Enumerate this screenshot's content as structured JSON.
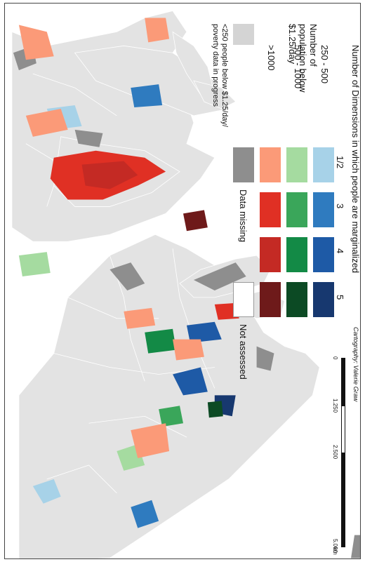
{
  "legend": {
    "title": "Number of Dimensions in which people are marginalized",
    "columns": [
      "1/2",
      "3",
      "4",
      "5"
    ],
    "rows": [
      {
        "label": "250 - 500",
        "colors": [
          "#a7d2e8",
          "#2f7bbf",
          "#1e5aa6",
          "#17386f"
        ]
      },
      {
        "label": "500 - 1000",
        "colors": [
          "#a5dba0",
          "#3aa65a",
          "#138a46",
          "#0c4a24"
        ]
      },
      {
        "label": ">1000",
        "colors": [
          "#fb9a78",
          "#e03024",
          "#c42a24",
          "#6e1a1a"
        ]
      }
    ],
    "population_heading": "Number of population below $1.25/day",
    "below_threshold_label": "<250 people below $1.25/day/ poverty data in progress",
    "data_missing_label": "Data missing",
    "not_assessed_label": "Not assessed",
    "cartography": "Cartography: Valerie Graw",
    "colors": {
      "below_threshold": "#d4d4d4",
      "data_missing": "#8e8e8e",
      "not_assessed": "#ffffff",
      "land_base": "#e3e3e3",
      "border": "#ffffff"
    }
  },
  "scale_bar": {
    "ticks": [
      "0",
      "1.250",
      "2.500",
      "5.000"
    ],
    "unit": "km"
  }
}
